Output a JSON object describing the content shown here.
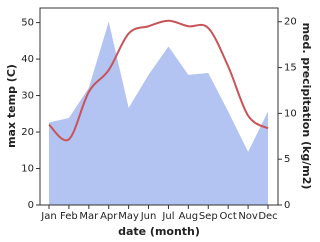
{
  "chart_data": {
    "type": "line",
    "x_label": "date (month)",
    "y_label": "max temp (C)",
    "y2_label": "med. precipitation (kg/m2)",
    "categories": [
      "Jan",
      "Feb",
      "Mar",
      "Apr",
      "May",
      "Jun",
      "Jul",
      "Aug",
      "Sep",
      "Oct",
      "Nov",
      "Dec"
    ],
    "series": [
      {
        "name": "med. precipitation",
        "type": "area",
        "axis": "y2",
        "color": "#b3c3f2",
        "values": [
          9,
          9.5,
          12.8,
          20,
          10.6,
          14.2,
          17.3,
          14.2,
          14.4,
          10.2,
          5.8,
          10.2
        ]
      },
      {
        "name": "max temp",
        "type": "line",
        "color": "#c85458",
        "values": [
          22,
          18,
          31,
          37,
          47,
          49,
          50.5,
          49,
          48.5,
          38,
          24.5,
          21
        ]
      }
    ],
    "ylim": [
      0,
      54
    ],
    "yticks": [
      0,
      10,
      20,
      30,
      40,
      50
    ],
    "y2lim": [
      0,
      21.5
    ],
    "y2ticks": [
      0,
      5,
      10,
      15,
      20
    ]
  }
}
